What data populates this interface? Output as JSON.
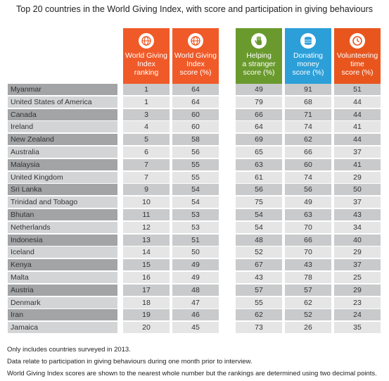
{
  "title": "Top 20 countries in the World Giving Index, with score and participation in giving behaviours",
  "columns": [
    {
      "label": "World Giving\nIndex\nranking",
      "color": "#f05a28",
      "icon": "globe-icon"
    },
    {
      "label": "World Giving\nIndex\nscore (%)",
      "color": "#f05a28",
      "icon": "globe-icon"
    },
    {
      "label": "Helping\na stranger\nscore (%)",
      "color": "#6a9a2d",
      "icon": "hand-icon"
    },
    {
      "label": "Donating\nmoney\nscore (%)",
      "color": "#2c9fd8",
      "icon": "coins-icon"
    },
    {
      "label": "Volunteering\ntime\nscore (%)",
      "color": "#e8561e",
      "icon": "clock-icon"
    }
  ],
  "colors": {
    "row_country_dark": "#a3a4a6",
    "row_country_light": "#d3d4d5",
    "row_value_dark": "#c9cacb",
    "row_value_light": "#e5e5e6"
  },
  "chart_data": {
    "type": "table",
    "title": "Top 20 countries in the World Giving Index, with score and participation in giving behaviours",
    "headers": [
      "World Giving Index ranking",
      "World Giving Index score (%)",
      "Helping a stranger score (%)",
      "Donating money score (%)",
      "Volunteering time score (%)"
    ],
    "rows": [
      {
        "country": "Myanmar",
        "ranking": "1",
        "score": "64",
        "helping": "49",
        "donating": "91",
        "volunteering": "51"
      },
      {
        "country": "United States of America",
        "ranking": "1",
        "score": "64",
        "helping": "79",
        "donating": "68",
        "volunteering": "44"
      },
      {
        "country": "Canada",
        "ranking": "3",
        "score": "60",
        "helping": "66",
        "donating": "71",
        "volunteering": "44"
      },
      {
        "country": "Ireland",
        "ranking": "4",
        "score": "60",
        "helping": "64",
        "donating": "74",
        "volunteering": "41"
      },
      {
        "country": "New Zealand",
        "ranking": "5",
        "score": "58",
        "helping": "69",
        "donating": "62",
        "volunteering": "44"
      },
      {
        "country": "Australia",
        "ranking": "6",
        "score": "56",
        "helping": "65",
        "donating": "66",
        "volunteering": "37"
      },
      {
        "country": "Malaysia",
        "ranking": "7",
        "score": "55",
        "helping": "63",
        "donating": "60",
        "volunteering": "41"
      },
      {
        "country": "United Kingdom",
        "ranking": "7",
        "score": "55",
        "helping": "61",
        "donating": "74",
        "volunteering": "29"
      },
      {
        "country": "Sri Lanka",
        "ranking": "9",
        "score": "54",
        "helping": "56",
        "donating": "56",
        "volunteering": "50"
      },
      {
        "country": "Trinidad and Tobago",
        "ranking": "10",
        "score": "54",
        "helping": "75",
        "donating": "49",
        "volunteering": "37"
      },
      {
        "country": "Bhutan",
        "ranking": "11",
        "score": "53",
        "helping": "54",
        "donating": "63",
        "volunteering": "43"
      },
      {
        "country": "Netherlands",
        "ranking": "12",
        "score": "53",
        "helping": "54",
        "donating": "70",
        "volunteering": "34"
      },
      {
        "country": "Indonesia",
        "ranking": "13",
        "score": "51",
        "helping": "48",
        "donating": "66",
        "volunteering": "40"
      },
      {
        "country": "Iceland",
        "ranking": "14",
        "score": "50",
        "helping": "52",
        "donating": "70",
        "volunteering": "29"
      },
      {
        "country": "Kenya",
        "ranking": "15",
        "score": "49",
        "helping": "67",
        "donating": "43",
        "volunteering": "37"
      },
      {
        "country": "Malta",
        "ranking": "16",
        "score": "49",
        "helping": "43",
        "donating": "78",
        "volunteering": "25"
      },
      {
        "country": "Austria",
        "ranking": "17",
        "score": "48",
        "helping": "57",
        "donating": "57",
        "volunteering": "29"
      },
      {
        "country": "Denmark",
        "ranking": "18",
        "score": "47",
        "helping": "55",
        "donating": "62",
        "volunteering": "23"
      },
      {
        "country": "Iran",
        "ranking": "19",
        "score": "46",
        "helping": "62",
        "donating": "52",
        "volunteering": "24"
      },
      {
        "country": "Jamaica",
        "ranking": "20",
        "score": "45",
        "helping": "73",
        "donating": "26",
        "volunteering": "35"
      }
    ]
  },
  "footnotes": [
    "Only includes countries surveyed in 2013.",
    "Data relate to participation in giving behaviours during one month prior to interview.",
    "World Giving Index scores are shown to the nearest whole number but the rankings are determined using two decimal points."
  ]
}
